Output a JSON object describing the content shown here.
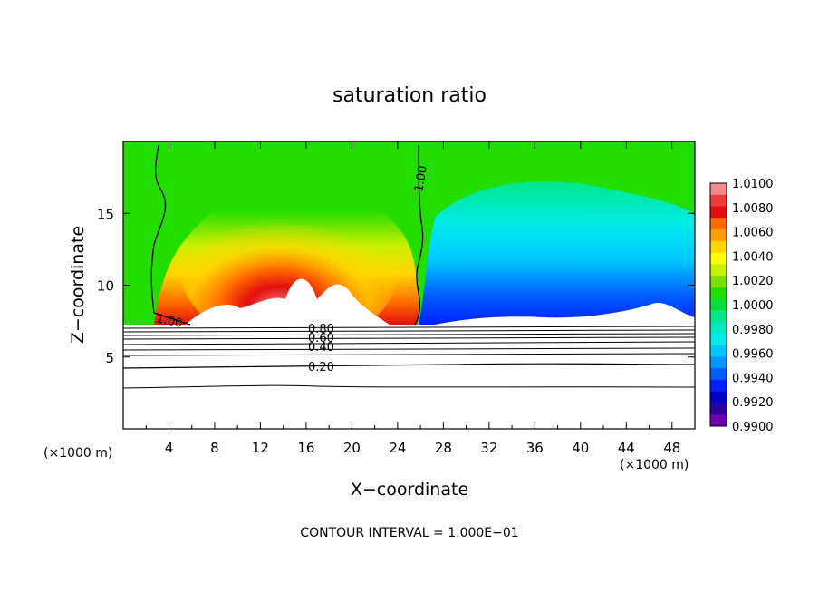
{
  "chart_data": {
    "type": "heatmap",
    "title": "saturation ratio",
    "xlabel": "X−coordinate",
    "ylabel": "Z−coordinate",
    "x_unit_left": "(×1000 m)",
    "x_unit_right": "(×1000 m)",
    "footer": "CONTOUR INTERVAL = 1.000E−01",
    "xlim": [
      0,
      50
    ],
    "ylim": [
      0,
      20
    ],
    "x_ticks": [
      "4",
      "8",
      "12",
      "16",
      "20",
      "24",
      "28",
      "32",
      "36",
      "40",
      "44",
      "48"
    ],
    "y_ticks": [
      "5",
      "10",
      "15"
    ],
    "contour_labels": [
      "1.00",
      "1.00",
      "0.80",
      "0.60",
      "0.40",
      "0.20"
    ],
    "colorbar": {
      "levels": [
        "1.0100",
        "1.0080",
        "1.0060",
        "1.0040",
        "1.0020",
        "1.0000",
        "0.9980",
        "0.9960",
        "0.9940",
        "0.9920",
        "0.9900"
      ],
      "colors": [
        "#f48a8a",
        "#ee3b3b",
        "#e30e0e",
        "#ff6a00",
        "#ff9d00",
        "#ffd400",
        "#ffff00",
        "#c8f000",
        "#7ee000",
        "#22dd00",
        "#08e038",
        "#00e888",
        "#00e8c0",
        "#00eaea",
        "#00c8ff",
        "#0096ff",
        "#005cff",
        "#0020ff",
        "#0000c8",
        "#2a00a0",
        "#6a00b0"
      ]
    },
    "cloud_base_z": 7.2,
    "contours_below_cloud": [
      {
        "label": "0.20",
        "z": 4.3
      },
      {
        "label": "0.40",
        "z": 5.6
      },
      {
        "label": "0.60",
        "z": 6.4
      },
      {
        "label": "0.80",
        "z": 6.9
      }
    ]
  }
}
